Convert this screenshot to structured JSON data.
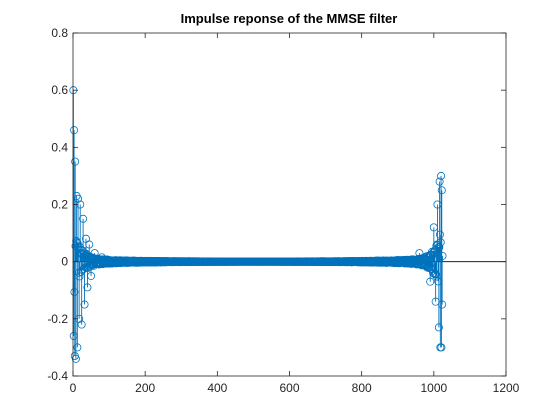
{
  "chart_data": {
    "type": "stem",
    "title": "Impulse reponse of the MMSE filter",
    "xlabel": "",
    "ylabel": "",
    "xlim": [
      0,
      1200
    ],
    "ylim": [
      -0.4,
      0.8
    ],
    "xticks": [
      0,
      200,
      400,
      600,
      800,
      1000,
      1200
    ],
    "yticks": [
      -0.4,
      -0.2,
      0,
      0.2,
      0.4,
      0.6,
      0.8
    ],
    "grid": false,
    "legend": "none",
    "n_samples": 1024,
    "series_color": "#0072BD",
    "key_points": {
      "x": [
        1,
        2,
        3,
        5,
        6,
        8,
        10,
        12,
        14,
        17,
        20,
        24,
        28,
        32,
        36,
        40,
        45,
        50,
        60,
        80,
        960,
        990,
        1000,
        1005,
        1010,
        1014,
        1016,
        1018,
        1020,
        1021,
        1022,
        1023,
        1024
      ],
      "y": [
        0.6,
        -0.26,
        0.46,
        -0.33,
        0.35,
        -0.34,
        0.23,
        -0.3,
        0.22,
        -0.2,
        0.2,
        -0.22,
        0.15,
        -0.15,
        0.08,
        -0.09,
        0.06,
        -0.05,
        0.03,
        0.015,
        0.03,
        -0.07,
        0.12,
        -0.14,
        0.2,
        -0.23,
        0.28,
        -0.3,
        0.3,
        -0.3,
        0.25,
        -0.15,
        0.02
      ]
    }
  }
}
